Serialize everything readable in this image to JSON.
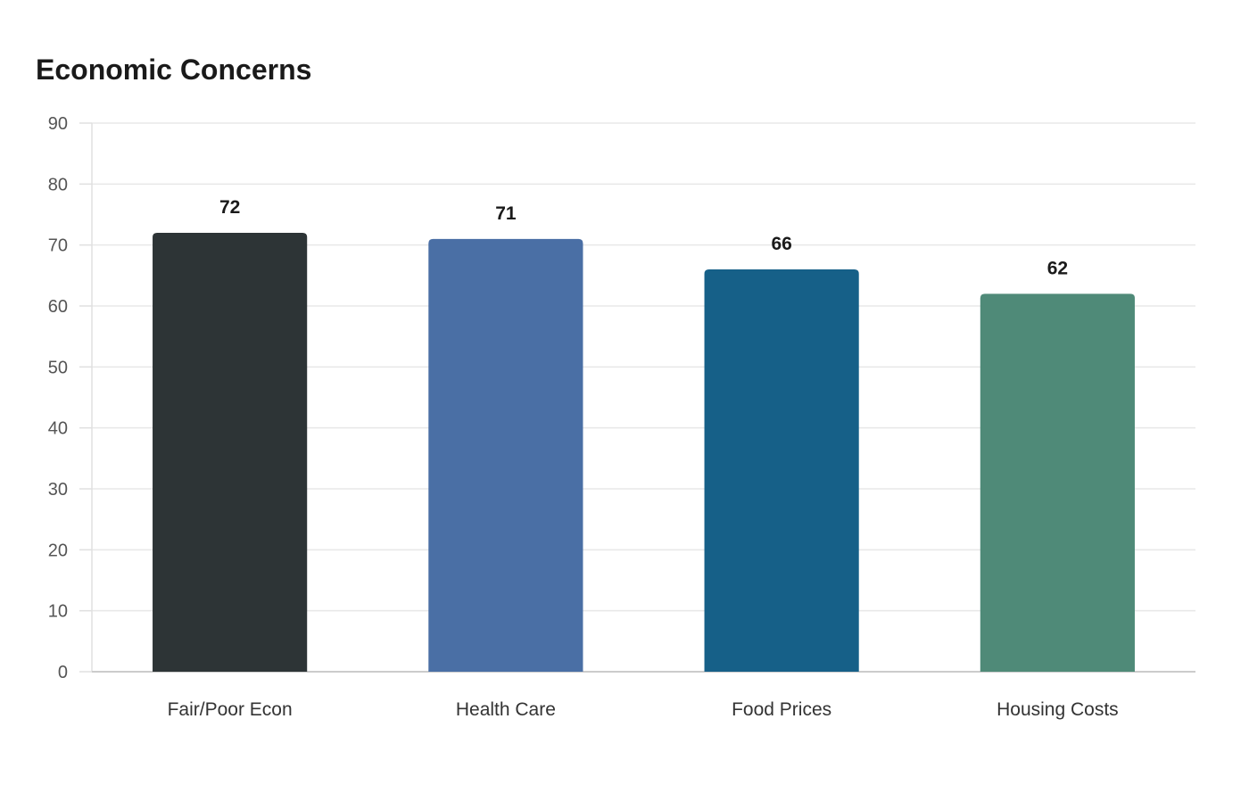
{
  "chart_data": {
    "type": "bar",
    "title": "Economic Concerns",
    "xlabel": "",
    "ylabel": "",
    "categories": [
      "Fair/Poor Econ",
      "Health Care",
      "Food Prices",
      "Housing Costs"
    ],
    "values": [
      72,
      71,
      66,
      62
    ],
    "colors": [
      "#2d3436",
      "#4a6fa5",
      "#166088",
      "#4f8a78"
    ],
    "ylim": [
      0,
      90
    ],
    "yticks": [
      0,
      10,
      20,
      30,
      40,
      50,
      60,
      70,
      80,
      90
    ],
    "grid": true,
    "legend": "none",
    "data_labels": true
  }
}
